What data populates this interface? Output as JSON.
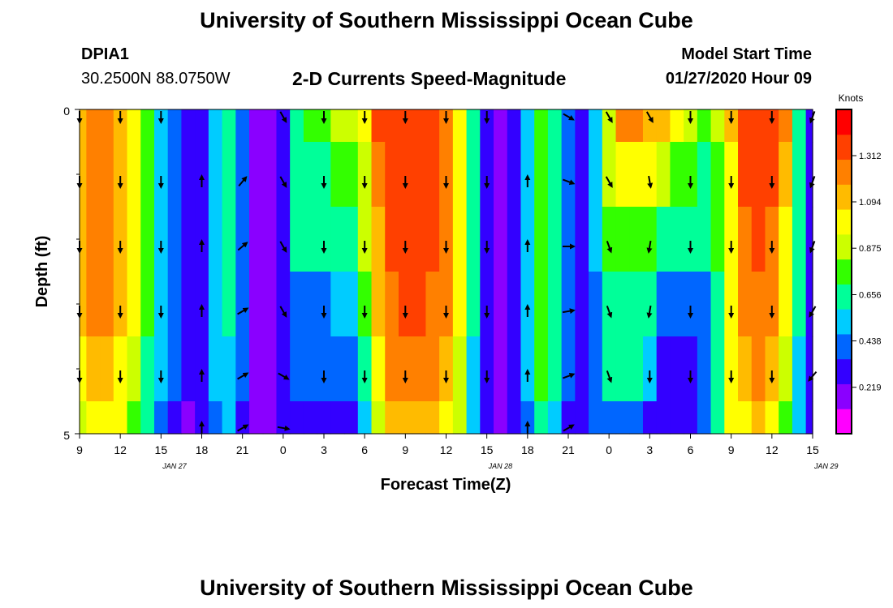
{
  "header": {
    "title": "University of Southern Mississippi Ocean Cube",
    "station_id": "DPIA1",
    "station_coords": "30.2500N 88.0750W",
    "plot_title": "2-D Currents Speed-Magnitude",
    "model_start_label": "Model Start Time",
    "model_start_value": "01/27/2020 Hour 09"
  },
  "footer": {
    "title": "University of Southern Mississippi Ocean Cube"
  },
  "colorbar": {
    "unit": "Knots",
    "ticks": [
      "1.312",
      "1.094",
      "0.875",
      "0.656",
      "0.438",
      "0.219"
    ],
    "max": 1.53,
    "colors": [
      "#ff00ff",
      "#8a00ff",
      "#3300ff",
      "#0066ff",
      "#00ccff",
      "#00ff99",
      "#33ff00",
      "#ccff00",
      "#ffff00",
      "#ffbb00",
      "#ff8000",
      "#ff4000",
      "#ff0000"
    ]
  },
  "chart_data": {
    "type": "heatmap",
    "title": "2-D Currents Speed-Magnitude",
    "xlabel": "Forecast Time(Z)",
    "ylabel": "Depth (ft)",
    "ylim": [
      0,
      5
    ],
    "y_ticks": [
      "0",
      "5"
    ],
    "x_tick_labels": [
      "9",
      "12",
      "15",
      "18",
      "21",
      "0",
      "3",
      "6",
      "9",
      "12",
      "15",
      "18",
      "21",
      "0",
      "3",
      "6",
      "9",
      "12",
      "15"
    ],
    "date_labels": [
      {
        "text": "JAN 27",
        "hour": 16
      },
      {
        "text": "JAN 28",
        "hour": 40
      },
      {
        "text": "JAN 29",
        "hour": 64
      }
    ],
    "x_range_hours": [
      9,
      63
    ],
    "depth_levels": [
      0,
      1,
      2,
      3,
      4,
      5
    ],
    "time_hours": [
      9,
      10,
      11,
      12,
      13,
      14,
      15,
      16,
      17,
      18,
      19,
      20,
      21,
      22,
      23,
      24,
      25,
      26,
      27,
      28,
      29,
      30,
      31,
      32,
      33,
      34,
      35,
      36,
      37,
      38,
      39,
      40,
      41,
      42,
      43,
      44,
      45,
      46,
      47,
      48,
      49,
      50,
      51,
      52,
      53,
      54,
      55,
      56,
      57,
      58,
      59,
      60,
      61,
      62,
      63
    ],
    "speed_knots": [
      [
        1.15,
        1.2,
        1.2,
        1.12,
        0.95,
        0.75,
        0.55,
        0.4,
        0.25,
        0.3,
        0.55,
        0.6,
        0.42,
        0.22,
        0.2,
        0.35,
        0.6,
        0.75,
        0.8,
        0.85,
        0.9,
        1.05,
        1.3,
        1.32,
        1.32,
        1.32,
        1.3,
        1.2,
        1.0,
        0.6,
        0.3,
        0.15,
        0.35,
        0.55,
        0.8,
        0.7,
        0.4,
        0.25,
        0.5,
        0.9,
        1.2,
        1.25,
        1.15,
        1.1,
        1.0,
        0.9,
        0.8,
        0.85,
        1.1,
        1.3,
        1.4,
        1.35,
        1.2,
        0.7,
        0.35
      ],
      [
        1.15,
        1.2,
        1.2,
        1.12,
        0.95,
        0.75,
        0.55,
        0.4,
        0.25,
        0.3,
        0.55,
        0.6,
        0.42,
        0.22,
        0.2,
        0.35,
        0.65,
        0.7,
        0.7,
        0.72,
        0.75,
        0.9,
        1.2,
        1.3,
        1.32,
        1.32,
        1.3,
        1.2,
        1.0,
        0.6,
        0.3,
        0.15,
        0.35,
        0.55,
        0.8,
        0.7,
        0.4,
        0.25,
        0.5,
        0.9,
        1.0,
        1.05,
        0.95,
        0.85,
        0.8,
        0.75,
        0.7,
        0.8,
        1.05,
        1.3,
        1.35,
        1.3,
        1.1,
        0.65,
        0.35
      ],
      [
        1.15,
        1.2,
        1.2,
        1.12,
        0.95,
        0.75,
        0.55,
        0.4,
        0.25,
        0.3,
        0.55,
        0.6,
        0.42,
        0.22,
        0.2,
        0.35,
        0.6,
        0.62,
        0.62,
        0.64,
        0.65,
        0.85,
        1.15,
        1.3,
        1.32,
        1.32,
        1.3,
        1.2,
        1.0,
        0.6,
        0.3,
        0.15,
        0.35,
        0.55,
        0.8,
        0.7,
        0.4,
        0.25,
        0.5,
        0.75,
        0.8,
        0.82,
        0.75,
        0.7,
        0.65,
        0.6,
        0.6,
        0.75,
        1.05,
        1.25,
        1.3,
        1.25,
        1.05,
        0.65,
        0.35
      ],
      [
        1.15,
        1.2,
        1.2,
        1.12,
        0.95,
        0.75,
        0.55,
        0.4,
        0.25,
        0.3,
        0.55,
        0.6,
        0.42,
        0.22,
        0.2,
        0.35,
        0.45,
        0.45,
        0.47,
        0.48,
        0.5,
        0.75,
        1.1,
        1.28,
        1.3,
        1.3,
        1.28,
        1.2,
        1.0,
        0.6,
        0.3,
        0.15,
        0.35,
        0.55,
        0.8,
        0.7,
        0.4,
        0.25,
        0.4,
        0.6,
        0.65,
        0.65,
        0.6,
        0.45,
        0.4,
        0.38,
        0.45,
        0.7,
        1.05,
        1.22,
        1.25,
        1.2,
        1.0,
        0.6,
        0.3
      ],
      [
        1.0,
        1.1,
        1.12,
        1.05,
        0.9,
        0.7,
        0.5,
        0.38,
        0.24,
        0.28,
        0.5,
        0.55,
        0.38,
        0.2,
        0.18,
        0.3,
        0.4,
        0.38,
        0.38,
        0.4,
        0.42,
        0.6,
        1.0,
        1.2,
        1.22,
        1.22,
        1.2,
        1.1,
        0.92,
        0.55,
        0.28,
        0.15,
        0.32,
        0.5,
        0.75,
        0.65,
        0.38,
        0.3,
        0.45,
        0.6,
        0.65,
        0.62,
        0.5,
        0.35,
        0.3,
        0.3,
        0.4,
        0.65,
        1.0,
        1.15,
        1.2,
        1.1,
        0.9,
        0.55,
        0.3
      ],
      [
        0.9,
        1.0,
        1.02,
        0.95,
        0.8,
        0.6,
        0.45,
        0.35,
        0.22,
        0.26,
        0.45,
        0.5,
        0.35,
        0.18,
        0.17,
        0.27,
        0.3,
        0.28,
        0.28,
        0.3,
        0.32,
        0.5,
        0.9,
        1.1,
        1.12,
        1.12,
        1.1,
        1.0,
        0.85,
        0.5,
        0.25,
        0.14,
        0.3,
        0.45,
        0.65,
        0.55,
        0.35,
        0.3,
        0.4,
        0.45,
        0.45,
        0.42,
        0.35,
        0.28,
        0.25,
        0.26,
        0.38,
        0.6,
        0.95,
        1.05,
        1.1,
        1.0,
        0.8,
        0.5,
        0.28
      ]
    ],
    "vectors": {
      "depth_rows": [
        0,
        1,
        2,
        3,
        4,
        5
      ],
      "time_hours": [
        9,
        12,
        15,
        18,
        21,
        24,
        27,
        30,
        33,
        36,
        39,
        42,
        45,
        48,
        51,
        54,
        57,
        60,
        63
      ],
      "direction_deg": [
        [
          180,
          180,
          180,
          null,
          null,
          150,
          180,
          180,
          180,
          180,
          180,
          null,
          120,
          150,
          150,
          180,
          180,
          180,
          200
        ],
        [
          180,
          180,
          180,
          0,
          40,
          150,
          180,
          180,
          180,
          180,
          180,
          0,
          110,
          150,
          170,
          180,
          180,
          180,
          200
        ],
        [
          180,
          180,
          180,
          0,
          50,
          150,
          180,
          180,
          180,
          180,
          180,
          0,
          90,
          160,
          190,
          180,
          180,
          180,
          200
        ],
        [
          180,
          180,
          180,
          0,
          60,
          150,
          180,
          180,
          180,
          180,
          180,
          0,
          80,
          160,
          190,
          180,
          180,
          180,
          210
        ],
        [
          180,
          180,
          180,
          0,
          60,
          120,
          180,
          180,
          180,
          180,
          180,
          0,
          70,
          160,
          180,
          180,
          180,
          180,
          220
        ],
        [
          null,
          null,
          null,
          0,
          60,
          100,
          null,
          null,
          null,
          null,
          null,
          0,
          60,
          null,
          null,
          null,
          null,
          null,
          null
        ]
      ]
    }
  }
}
